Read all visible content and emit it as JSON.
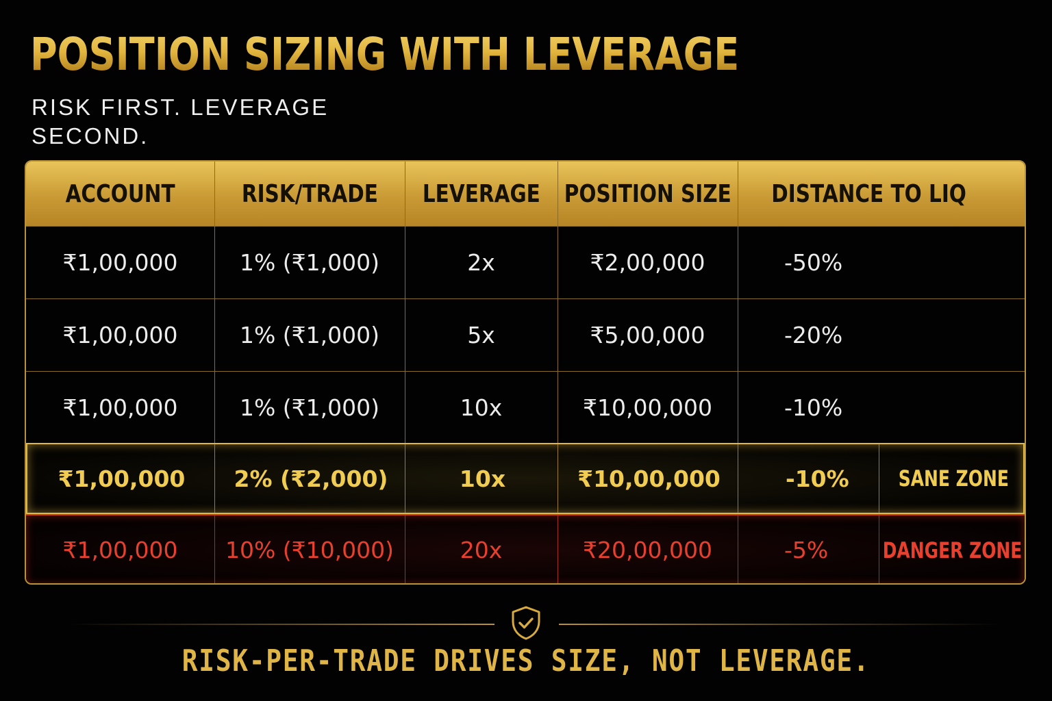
{
  "title": "POSITION SIZING WITH LEVERAGE",
  "subtitle": "RISK FIRST. LEVERAGE SECOND.",
  "colors": {
    "gold": "#e2b63f",
    "sane": "#f1cc52",
    "danger": "#e8402e",
    "background": "#020202"
  },
  "table": {
    "headers": [
      "ACCOUNT",
      "RISK/TRADE",
      "LEVERAGE",
      "POSITION SIZE",
      "DISTANCE TO LIQ"
    ],
    "rows": [
      {
        "account": "₹1,00,000",
        "risk": "1% (₹1,000)",
        "leverage": "2x",
        "position": "₹2,00,000",
        "distance": "-50%"
      },
      {
        "account": "₹1,00,000",
        "risk": "1% (₹1,000)",
        "leverage": "5x",
        "position": "₹5,00,000",
        "distance": "-20%"
      },
      {
        "account": "₹1,00,000",
        "risk": "1% (₹1,000)",
        "leverage": "10x",
        "position": "₹10,00,000",
        "distance": "-10%"
      },
      {
        "account": "₹1,00,000",
        "risk": "2% (₹2,000)",
        "leverage": "10x",
        "position": "₹10,00,000",
        "distance": "-10%",
        "zone": "SANE ZONE"
      },
      {
        "account": "₹1,00,000",
        "risk": "10% (₹10,000)",
        "leverage": "20x",
        "position": "₹20,00,000",
        "distance": "-5%",
        "zone": "DANGER ZONE"
      }
    ]
  },
  "footer": {
    "icon": "shield-check-icon",
    "text": "RISK-PER-TRADE DRIVES SIZE, NOT LEVERAGE."
  }
}
